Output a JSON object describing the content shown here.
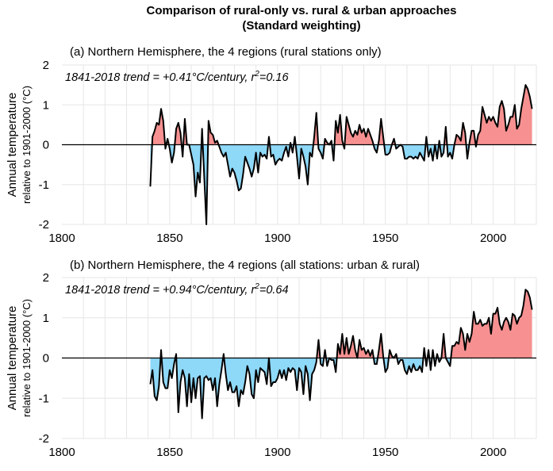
{
  "title": "Comparison of rural-only vs. rural & urban approaches",
  "subtitle": "(Standard weighting)",
  "colors": {
    "positive_fill": "#f79191",
    "negative_fill": "#8ed8f8",
    "line": "#000000",
    "grid": "#e6e6e6"
  },
  "chart_data": [
    {
      "type": "area",
      "panel_title": "(a) Northern Hemisphere, the 4 regions (rural stations only)",
      "annotation": {
        "text": "1841-2018 trend = +0.41°C/century, r",
        "sup": "2",
        "tail": "=0.16"
      },
      "ylabel_line1": "Annual temperature",
      "ylabel_line2": "relative to 1901-2000 (°C)",
      "xlim": [
        1800,
        2020
      ],
      "ylim": [
        -2,
        2
      ],
      "xticks": [
        "1800",
        "1850",
        "1900",
        "1950",
        "2000"
      ],
      "yticks": [
        "2",
        "1",
        "0",
        "-1",
        "-2"
      ],
      "grid": true,
      "x_range": [
        1841,
        2018
      ],
      "values": [
        -1.05,
        0.2,
        0.35,
        0.55,
        0.5,
        0.9,
        0.6,
        -0.1,
        0.15,
        -0.1,
        -0.45,
        -0.2,
        0.4,
        0.55,
        0.3,
        -0.3,
        0.65,
        0.0,
        0.0,
        -0.25,
        -0.5,
        -1.3,
        -0.7,
        -0.95,
        0.4,
        -0.8,
        -2.0,
        0.6,
        0.3,
        0.25,
        0.05,
        0.1,
        -0.05,
        -0.2,
        -0.3,
        -0.2,
        -0.5,
        -0.8,
        -0.6,
        -0.7,
        -0.9,
        -1.15,
        -1.1,
        -0.75,
        -0.3,
        -0.45,
        -0.6,
        -0.8,
        -0.6,
        -0.2,
        -0.7,
        -0.2,
        -0.3,
        -0.25,
        -0.35,
        0.2,
        -0.3,
        -0.25,
        -0.5,
        -0.4,
        -0.35,
        -0.4,
        -0.2,
        -0.05,
        -0.3,
        0.05,
        -0.2,
        0.2,
        -0.3,
        -0.85,
        -0.1,
        -0.3,
        -0.55,
        -1.0,
        -0.2,
        -0.3,
        0.2,
        0.8,
        -0.1,
        -0.2,
        -0.35,
        0.15,
        0.05,
        0.0,
        0.1,
        -0.4,
        0.6,
        0.3,
        0.75,
        0.1,
        -0.1,
        0.7,
        0.5,
        0.3,
        0.2,
        0.35,
        0.25,
        0.5,
        0.3,
        0.4,
        0.2,
        0.4,
        0.25,
        0.1,
        -0.1,
        -0.2,
        0.1,
        0.65,
        0.2,
        -0.25,
        -0.25,
        -0.2,
        0.0,
        0.15,
        -0.1,
        -0.05,
        0.0,
        -0.05,
        -0.35,
        -0.35,
        -0.3,
        -0.3,
        -0.35,
        -0.3,
        -0.35,
        -0.2,
        -0.3,
        -0.4,
        0.2,
        -0.3,
        -0.1,
        -0.4,
        0.0,
        -0.35,
        0.1,
        -0.3,
        -0.2,
        0.45,
        -0.3,
        -0.2,
        -0.35,
        0.0,
        0.25,
        0.2,
        0.1,
        0.55,
        0.3,
        -0.35,
        0.05,
        0.35,
        0.35,
        -0.05,
        0.25,
        0.35,
        0.95,
        0.75,
        0.55,
        0.7,
        0.6,
        0.7,
        0.55,
        0.45,
        0.95,
        1.1,
        0.9,
        0.35,
        0.5,
        0.7,
        0.7,
        1.0,
        0.4,
        0.5,
        0.9,
        1.2,
        1.5,
        1.4,
        1.2,
        0.9
      ]
    },
    {
      "type": "area",
      "panel_title": "(b) Northern Hemisphere, the 4 regions (all stations: urban & rural)",
      "annotation": {
        "text": "1841-2018 trend = +0.94°C/century, r",
        "sup": "2",
        "tail": "=0.64"
      },
      "ylabel_line1": "Annual temperature",
      "ylabel_line2": "relative to 1901-2000 (°C)",
      "xlim": [
        1800,
        2020
      ],
      "ylim": [
        -2,
        2
      ],
      "xticks": [
        "1800",
        "1850",
        "1900",
        "1950",
        "2000"
      ],
      "yticks": [
        "2",
        "1",
        "0",
        "-1",
        "-2"
      ],
      "grid": true,
      "x_range": [
        1841,
        2018
      ],
      "values": [
        -0.65,
        -0.3,
        -0.95,
        -1.05,
        -0.7,
        0.2,
        -0.6,
        -0.75,
        -0.75,
        -0.3,
        -0.5,
        -0.15,
        0.1,
        -1.35,
        -0.6,
        -0.3,
        -0.5,
        -1.2,
        -0.4,
        -1.1,
        -0.5,
        -1.0,
        -0.5,
        -0.45,
        -1.5,
        -0.5,
        -0.45,
        -0.55,
        -0.5,
        -0.8,
        -0.5,
        -1.2,
        -0.65,
        -0.3,
        0.1,
        -0.4,
        -0.8,
        -0.6,
        -0.85,
        -0.85,
        -0.7,
        -1.2,
        -0.8,
        -0.9,
        -0.6,
        -0.2,
        -0.4,
        -0.9,
        -1.0,
        -0.3,
        -0.6,
        -0.25,
        -0.3,
        -0.35,
        -0.65,
        0.0,
        -0.7,
        -0.6,
        -0.6,
        -0.5,
        -0.3,
        -0.5,
        -0.3,
        -0.55,
        -0.25,
        -0.35,
        -0.25,
        -0.3,
        -0.8,
        -0.25,
        -0.35,
        -0.9,
        -0.2,
        -0.4,
        -1.05,
        -0.4,
        -0.3,
        -0.1,
        0.45,
        -0.15,
        -0.2,
        0.2,
        -0.2,
        0.0,
        -0.05,
        -0.05,
        -0.35,
        0.35,
        0.1,
        0.6,
        0.1,
        0.5,
        0.1,
        0.3,
        0.55,
        0.2,
        0.0,
        0.45,
        0.2,
        0.25,
        0.1,
        0.2,
        0.05,
        0.2,
        -0.15,
        -0.15,
        0.2,
        0.6,
        0.05,
        -0.35,
        -0.25,
        0.2,
        0.05,
        0.0,
        0.1,
        -0.15,
        -0.05,
        -0.05,
        -0.3,
        -0.4,
        -0.2,
        -0.35,
        -0.15,
        -0.3,
        -0.3,
        -0.2,
        -0.35,
        0.25,
        -0.2,
        0.2,
        -0.3,
        0.2,
        -0.2,
        0.1,
        -0.1,
        0.0,
        0.6,
        0.0,
        -0.1,
        -0.2,
        0.3,
        0.3,
        0.4,
        0.35,
        0.75,
        0.6,
        0.2,
        0.6,
        0.4,
        0.6,
        1.15,
        0.85,
        0.85,
        0.95,
        0.8,
        0.85,
        0.85,
        1.0,
        0.6,
        1.1,
        1.1,
        1.25,
        0.85,
        0.7,
        0.9,
        1.0,
        0.9,
        0.7,
        1.1,
        1.05,
        0.85,
        1.0,
        1.05,
        1.3,
        1.7,
        1.65,
        1.5,
        1.2
      ]
    }
  ]
}
